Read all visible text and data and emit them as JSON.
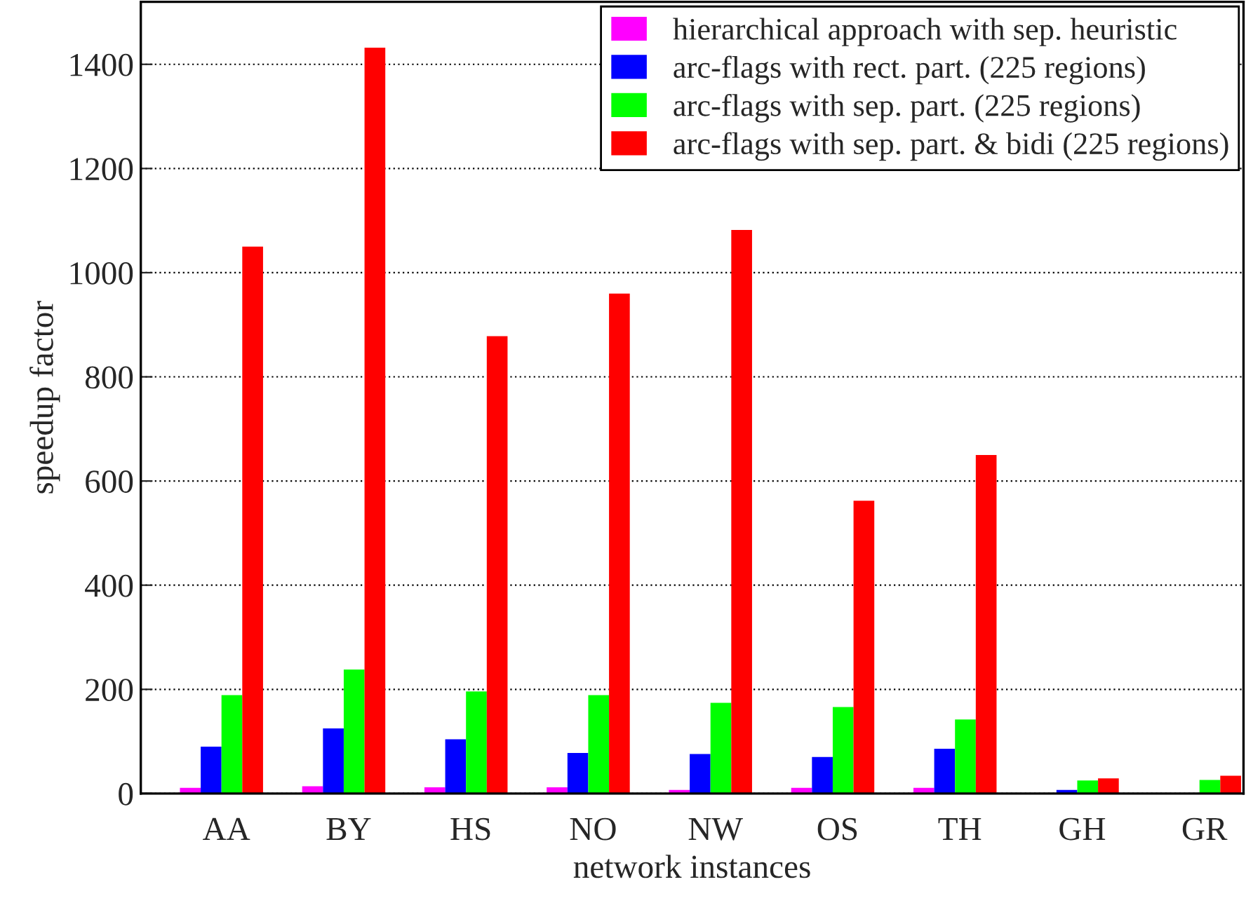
{
  "chart_data": {
    "type": "bar",
    "xlabel": "network instances",
    "ylabel": "speedup factor",
    "categories": [
      "AA",
      "BY",
      "HS",
      "NO",
      "NW",
      "OS",
      "TH",
      "GH",
      "GR"
    ],
    "series": [
      {
        "name": "hierarchical approach with sep. heuristic",
        "color": "#ff00ff",
        "values": [
          11,
          14,
          12,
          12,
          7,
          11,
          11,
          null,
          null
        ]
      },
      {
        "name": "arc-flags with rect. part. (225 regions)",
        "color": "#0000ff",
        "values": [
          90,
          125,
          104,
          78,
          76,
          70,
          86,
          7,
          null
        ]
      },
      {
        "name": "arc-flags with sep. part. (225 regions)",
        "color": "#00ff00",
        "values": [
          189,
          238,
          196,
          189,
          174,
          166,
          142,
          25,
          26
        ]
      },
      {
        "name": "arc-flags with sep. part. & bidi (225 regions)",
        "color": "#ff0000",
        "values": [
          1050,
          1432,
          878,
          960,
          1082,
          562,
          650,
          29,
          34
        ]
      }
    ],
    "ylim": [
      0,
      1520
    ],
    "yticks": [
      0,
      200,
      400,
      600,
      800,
      1000,
      1200,
      1400
    ],
    "grid": "y",
    "legend": "top right"
  }
}
